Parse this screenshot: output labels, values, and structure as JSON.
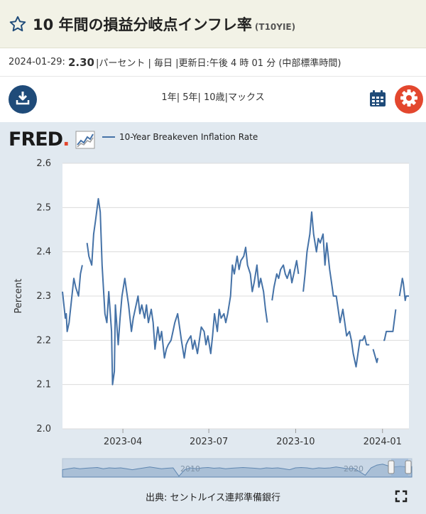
{
  "header": {
    "title": "10 年間の損益分岐点インフレ率",
    "series_id": "(T10YIE)"
  },
  "meta": {
    "date": "2024-01-29:",
    "value": "2.30",
    "rest": "|パーセント | 毎日 |更新日:午後 4 時 01 分 (中部標準時間)"
  },
  "toolbar": {
    "ranges": [
      "1年",
      "5年",
      "10歳",
      "マックス"
    ]
  },
  "logo": {
    "text": "FRED",
    "mark": "."
  },
  "legend": {
    "label": "10-Year Breakeven Inflation Rate",
    "color": "#4572a7"
  },
  "source": "出典: セントルイス連邦準備銀行",
  "colors": {
    "line": "#4572a7",
    "panel": "#e1e9f0",
    "download": "#1f4b79",
    "settings": "#e3472e"
  },
  "icons": [
    "star-icon",
    "download-icon",
    "calendar-icon",
    "gear-icon",
    "fullscreen-icon"
  ],
  "chart_data": {
    "type": "line",
    "title": "",
    "xlabel": "",
    "ylabel": "Percent",
    "ylim": [
      2.0,
      2.6
    ],
    "yticks": [
      2.0,
      2.1,
      2.2,
      2.3,
      2.4,
      2.5,
      2.6
    ],
    "ytick_labels": [
      "2.0",
      "2.1",
      "2.2",
      "2.3",
      "2.4",
      "2.5",
      "2.6"
    ],
    "xlim": [
      "2023-01-27",
      "2024-01-29"
    ],
    "xticks": [
      "2023-04-01",
      "2023-07-01",
      "2023-10-01",
      "2024-01-01"
    ],
    "xtick_labels": [
      "2023-04",
      "2023-07",
      "2023-10",
      "2024-01"
    ],
    "grid": "horizontal",
    "navigator_labels": [
      "2010",
      "2020"
    ],
    "series": [
      {
        "name": "10-Year Breakeven Inflation Rate",
        "points": [
          [
            "2023-01-27",
            2.31
          ],
          [
            "2023-01-30",
            2.25
          ],
          [
            "2023-01-31",
            2.26
          ],
          [
            "2023-02-01",
            2.22
          ],
          [
            "2023-02-03",
            2.24
          ],
          [
            "2023-02-06",
            2.3
          ],
          [
            "2023-02-08",
            2.34
          ],
          [
            "2023-02-10",
            2.32
          ],
          [
            "2023-02-13",
            2.3
          ],
          [
            "2023-02-15",
            2.35
          ],
          [
            "2023-02-17",
            2.37
          ],
          [
            "2023-02-20",
            null
          ],
          [
            "2023-02-22",
            2.42
          ],
          [
            "2023-02-24",
            2.39
          ],
          [
            "2023-02-27",
            2.37
          ],
          [
            "2023-03-01",
            2.44
          ],
          [
            "2023-03-03",
            2.47
          ],
          [
            "2023-03-06",
            2.52
          ],
          [
            "2023-03-08",
            2.49
          ],
          [
            "2023-03-10",
            2.37
          ],
          [
            "2023-03-13",
            2.26
          ],
          [
            "2023-03-15",
            2.24
          ],
          [
            "2023-03-17",
            2.31
          ],
          [
            "2023-03-20",
            2.22
          ],
          [
            "2023-03-21",
            2.1
          ],
          [
            "2023-03-23",
            2.13
          ],
          [
            "2023-03-24",
            2.28
          ],
          [
            "2023-03-27",
            2.19
          ],
          [
            "2023-03-29",
            2.25
          ],
          [
            "2023-03-31",
            2.3
          ],
          [
            "2023-04-03",
            2.34
          ],
          [
            "2023-04-05",
            2.31
          ],
          [
            "2023-04-07",
            2.28
          ],
          [
            "2023-04-10",
            2.22
          ],
          [
            "2023-04-12",
            2.25
          ],
          [
            "2023-04-14",
            2.27
          ],
          [
            "2023-04-17",
            2.3
          ],
          [
            "2023-04-19",
            2.26
          ],
          [
            "2023-04-21",
            2.28
          ],
          [
            "2023-04-24",
            2.25
          ],
          [
            "2023-04-26",
            2.28
          ],
          [
            "2023-04-28",
            2.24
          ],
          [
            "2023-05-01",
            2.27
          ],
          [
            "2023-05-03",
            2.24
          ],
          [
            "2023-05-05",
            2.18
          ],
          [
            "2023-05-08",
            2.23
          ],
          [
            "2023-05-10",
            2.2
          ],
          [
            "2023-05-12",
            2.22
          ],
          [
            "2023-05-15",
            2.16
          ],
          [
            "2023-05-17",
            2.18
          ],
          [
            "2023-05-19",
            2.19
          ],
          [
            "2023-05-22",
            2.2
          ],
          [
            "2023-05-24",
            2.22
          ],
          [
            "2023-05-26",
            2.24
          ],
          [
            "2023-05-29",
            2.26
          ],
          [
            "2023-05-31",
            2.23
          ],
          [
            "2023-06-02",
            2.2
          ],
          [
            "2023-06-05",
            2.16
          ],
          [
            "2023-06-07",
            2.19
          ],
          [
            "2023-06-09",
            2.2
          ],
          [
            "2023-06-12",
            2.21
          ],
          [
            "2023-06-14",
            2.18
          ],
          [
            "2023-06-16",
            2.2
          ],
          [
            "2023-06-19",
            2.17
          ],
          [
            "2023-06-21",
            2.2
          ],
          [
            "2023-06-23",
            2.23
          ],
          [
            "2023-06-26",
            2.22
          ],
          [
            "2023-06-28",
            2.19
          ],
          [
            "2023-06-30",
            2.21
          ],
          [
            "2023-07-03",
            2.17
          ],
          [
            "2023-07-05",
            2.21
          ],
          [
            "2023-07-07",
            2.26
          ],
          [
            "2023-07-10",
            2.22
          ],
          [
            "2023-07-12",
            2.27
          ],
          [
            "2023-07-14",
            2.25
          ],
          [
            "2023-07-17",
            2.26
          ],
          [
            "2023-07-19",
            2.24
          ],
          [
            "2023-07-21",
            2.26
          ],
          [
            "2023-07-24",
            2.3
          ],
          [
            "2023-07-26",
            2.37
          ],
          [
            "2023-07-28",
            2.35
          ],
          [
            "2023-07-31",
            2.39
          ],
          [
            "2023-08-02",
            2.36
          ],
          [
            "2023-08-04",
            2.38
          ],
          [
            "2023-08-07",
            2.39
          ],
          [
            "2023-08-09",
            2.41
          ],
          [
            "2023-08-11",
            2.37
          ],
          [
            "2023-08-14",
            2.35
          ],
          [
            "2023-08-16",
            2.31
          ],
          [
            "2023-08-18",
            2.33
          ],
          [
            "2023-08-21",
            2.37
          ],
          [
            "2023-08-23",
            2.32
          ],
          [
            "2023-08-25",
            2.34
          ],
          [
            "2023-08-28",
            2.31
          ],
          [
            "2023-08-30",
            2.27
          ],
          [
            "2023-09-01",
            2.24
          ],
          [
            "2023-09-04",
            null
          ],
          [
            "2023-09-06",
            2.29
          ],
          [
            "2023-09-08",
            2.32
          ],
          [
            "2023-09-11",
            2.35
          ],
          [
            "2023-09-13",
            2.34
          ],
          [
            "2023-09-15",
            2.36
          ],
          [
            "2023-09-18",
            2.37
          ],
          [
            "2023-09-20",
            2.35
          ],
          [
            "2023-09-22",
            2.34
          ],
          [
            "2023-09-25",
            2.36
          ],
          [
            "2023-09-27",
            2.33
          ],
          [
            "2023-09-29",
            2.35
          ],
          [
            "2023-10-02",
            2.38
          ],
          [
            "2023-10-04",
            2.35
          ],
          [
            "2023-10-06",
            null
          ],
          [
            "2023-10-09",
            2.31
          ],
          [
            "2023-10-11",
            2.35
          ],
          [
            "2023-10-13",
            2.4
          ],
          [
            "2023-10-16",
            2.44
          ],
          [
            "2023-10-18",
            2.49
          ],
          [
            "2023-10-20",
            2.44
          ],
          [
            "2023-10-23",
            2.4
          ],
          [
            "2023-10-25",
            2.43
          ],
          [
            "2023-10-27",
            2.42
          ],
          [
            "2023-10-30",
            2.44
          ],
          [
            "2023-11-01",
            2.37
          ],
          [
            "2023-11-03",
            2.42
          ],
          [
            "2023-11-06",
            2.36
          ],
          [
            "2023-11-08",
            2.33
          ],
          [
            "2023-11-10",
            2.3
          ],
          [
            "2023-11-13",
            2.3
          ],
          [
            "2023-11-15",
            2.27
          ],
          [
            "2023-11-17",
            2.24
          ],
          [
            "2023-11-20",
            2.27
          ],
          [
            "2023-11-22",
            2.24
          ],
          [
            "2023-11-24",
            2.21
          ],
          [
            "2023-11-27",
            2.22
          ],
          [
            "2023-11-29",
            2.2
          ],
          [
            "2023-12-01",
            2.17
          ],
          [
            "2023-12-04",
            2.14
          ],
          [
            "2023-12-06",
            2.17
          ],
          [
            "2023-12-08",
            2.2
          ],
          [
            "2023-12-11",
            2.2
          ],
          [
            "2023-12-13",
            2.21
          ],
          [
            "2023-12-15",
            2.19
          ],
          [
            "2023-12-18",
            2.19
          ],
          [
            "2023-12-20",
            null
          ],
          [
            "2023-12-22",
            2.18
          ],
          [
            "2023-12-26",
            2.15
          ],
          [
            "2023-12-27",
            2.16
          ],
          [
            "2023-12-29",
            null
          ],
          [
            "2024-01-02",
            2.2
          ],
          [
            "2024-01-03",
            2.2
          ],
          [
            "2024-01-05",
            2.22
          ],
          [
            "2024-01-08",
            2.22
          ],
          [
            "2024-01-10",
            2.22
          ],
          [
            "2024-01-12",
            2.22
          ],
          [
            "2024-01-15",
            2.27
          ],
          [
            "2024-01-17",
            null
          ],
          [
            "2024-01-19",
            2.3
          ],
          [
            "2024-01-22",
            2.34
          ],
          [
            "2024-01-23",
            2.33
          ],
          [
            "2024-01-24",
            2.31
          ],
          [
            "2024-01-25",
            2.29
          ],
          [
            "2024-01-26",
            2.3
          ],
          [
            "2024-01-29",
            2.3
          ]
        ]
      }
    ]
  }
}
